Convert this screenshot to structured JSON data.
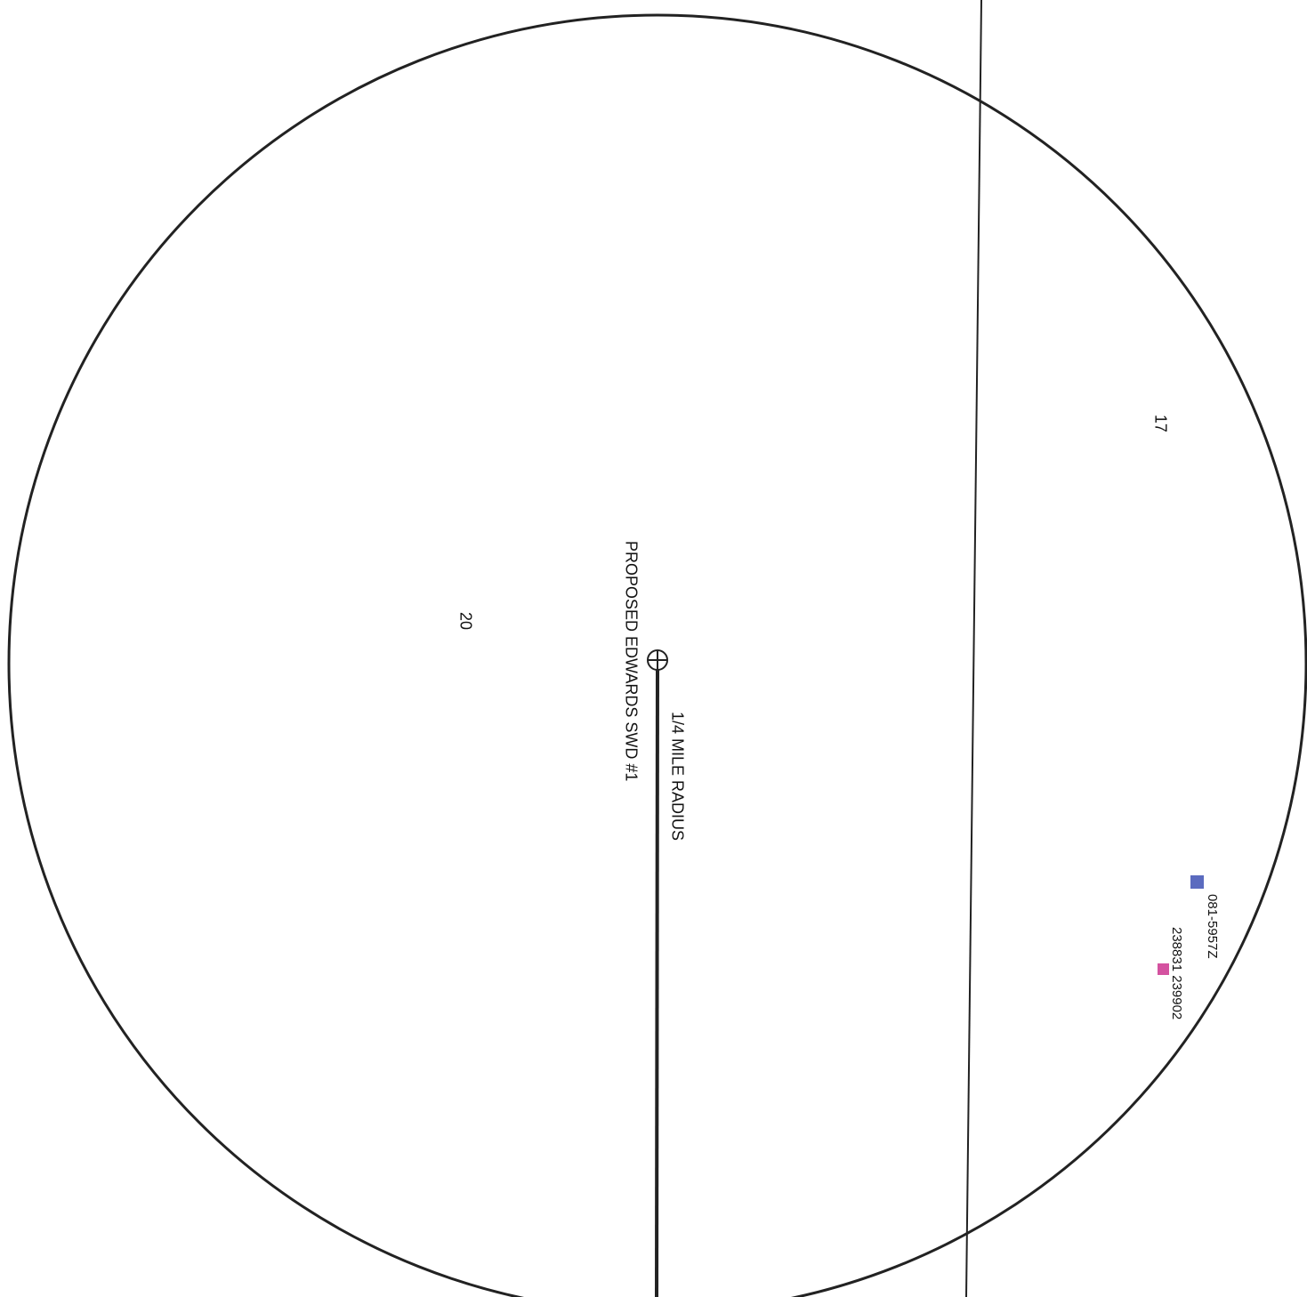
{
  "map": {
    "section_labels": [
      "17",
      "20"
    ],
    "well_label": "PROPOSED EDWARDS SWD #1",
    "radius_label": "1/4 MILE RADIUS",
    "nearby_wells": [
      {
        "label": "081-5957Z",
        "color": "#5b6bbf"
      },
      {
        "label": "238831 239902",
        "color": "#d452a0"
      }
    ]
  }
}
